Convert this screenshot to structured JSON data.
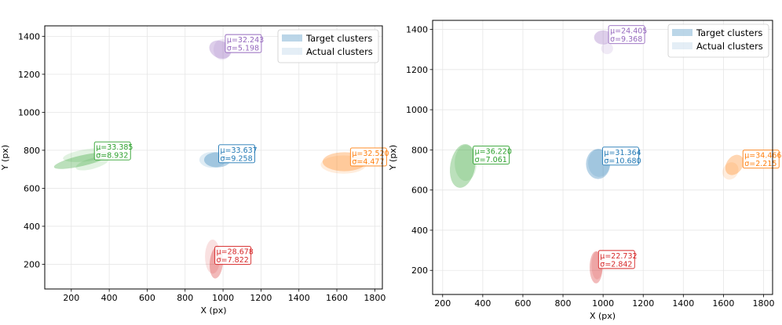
{
  "chart_data": [
    {
      "type": "scatter",
      "xlabel": "X (px)",
      "ylabel": "Y (px)",
      "xlim": [
        60,
        1840
      ],
      "ylim": [
        70,
        1455
      ],
      "xticks": [
        200,
        400,
        600,
        800,
        1000,
        1200,
        1400,
        1600,
        1800
      ],
      "yticks": [
        200,
        400,
        600,
        800,
        1000,
        1200,
        1400
      ],
      "grid": true,
      "legend": {
        "placement": "top-right",
        "entries": [
          "Target clusters",
          "Actual clusters"
        ]
      },
      "clusters": [
        {
          "color": "#9467bd",
          "x": 985,
          "y": 1330,
          "rx": 60,
          "ry": 45,
          "angle": 25,
          "actual": [
            {
              "dx": 10,
              "dy": 0,
              "rx": 45,
              "ry": 55,
              "angle": 0
            }
          ],
          "label": {
            "mu": "μ=32.243",
            "sigma": "σ=5.198",
            "x": 1020,
            "y": 1405
          }
        },
        {
          "color": "#1f77b4",
          "x": 970,
          "y": 750,
          "rx": 70,
          "ry": 40,
          "angle": 0,
          "actual": [
            {
              "dx": -25,
              "dy": 0,
              "rx": 70,
              "ry": 42,
              "angle": 0
            }
          ],
          "label": {
            "mu": "μ=33.637",
            "sigma": "σ=9.258",
            "x": 985,
            "y": 825
          }
        },
        {
          "color": "#2ca02c",
          "x": 255,
          "y": 745,
          "rx": 150,
          "ry": 28,
          "angle": -13,
          "actual": [
            {
              "dx": 35,
              "dy": 30,
              "rx": 135,
              "ry": 32,
              "angle": -8
            },
            {
              "dx": 55,
              "dy": -15,
              "rx": 90,
              "ry": 28,
              "angle": -15
            }
          ],
          "label": {
            "mu": "μ=33.385",
            "sigma": "σ=8.932",
            "x": 330,
            "y": 840
          }
        },
        {
          "color": "#ff7f0e",
          "x": 1640,
          "y": 740,
          "rx": 115,
          "ry": 50,
          "angle": 0,
          "actual": [
            {
              "dx": -5,
              "dy": -15,
              "rx": 120,
              "ry": 48,
              "angle": 0
            }
          ],
          "label": {
            "mu": "μ=32.520",
            "sigma": "σ=4.477",
            "x": 1680,
            "y": 808
          }
        },
        {
          "color": "#d62728",
          "x": 965,
          "y": 210,
          "rx": 35,
          "ry": 85,
          "angle": 5,
          "actual": [
            {
              "dx": -20,
              "dy": 30,
              "rx": 40,
              "ry": 90,
              "angle": 0
            }
          ],
          "label": {
            "mu": "μ=28.678",
            "sigma": "σ=7.822",
            "x": 965,
            "y": 290
          }
        }
      ]
    },
    {
      "type": "scatter",
      "xlabel": "X (px)",
      "ylabel": "Y (px)",
      "xlim": [
        150,
        1845
      ],
      "ylim": [
        80,
        1445
      ],
      "xticks": [
        200,
        400,
        600,
        800,
        1000,
        1200,
        1400,
        1600,
        1800
      ],
      "yticks": [
        200,
        400,
        600,
        800,
        1000,
        1200,
        1400
      ],
      "grid": true,
      "legend": {
        "placement": "top-right",
        "entries": [
          "Target clusters",
          "Actual clusters"
        ]
      },
      "clusters": [
        {
          "color": "#9467bd",
          "x": 1000,
          "y": 1360,
          "rx": 45,
          "ry": 35,
          "angle": 0,
          "actual": [
            {
              "dx": 20,
              "dy": -55,
              "rx": 30,
              "ry": 28,
              "angle": 0
            }
          ],
          "label": {
            "mu": "μ=24.405",
            "sigma": "σ=9.368",
            "x": 1035,
            "y": 1415
          }
        },
        {
          "color": "#1f77b4",
          "x": 975,
          "y": 730,
          "rx": 60,
          "ry": 75,
          "angle": 0,
          "actual": [
            {
              "dx": 5,
              "dy": 5,
              "rx": 55,
              "ry": 70,
              "angle": 0
            }
          ],
          "label": {
            "mu": "μ=31.364",
            "sigma": "σ=10.680",
            "x": 1005,
            "y": 810
          }
        },
        {
          "color": "#2ca02c",
          "x": 300,
          "y": 720,
          "rx": 62,
          "ry": 110,
          "angle": 10,
          "actual": [
            {
              "dx": 15,
              "dy": 15,
              "rx": 55,
              "ry": 90,
              "angle": 0
            }
          ],
          "label": {
            "mu": "μ=36.220",
            "sigma": "σ=7.061",
            "x": 360,
            "y": 815
          }
        },
        {
          "color": "#ff7f0e",
          "x": 1655,
          "y": 725,
          "rx": 40,
          "ry": 55,
          "angle": 35,
          "actual": [
            {
              "dx": -20,
              "dy": -30,
              "rx": 38,
              "ry": 45,
              "angle": 30
            }
          ],
          "label": {
            "mu": "μ=34.466",
            "sigma": "σ=2.215",
            "x": 1705,
            "y": 795
          }
        },
        {
          "color": "#d62728",
          "x": 965,
          "y": 215,
          "rx": 32,
          "ry": 80,
          "angle": 0,
          "actual": [
            {
              "dx": 5,
              "dy": 10,
              "rx": 28,
              "ry": 70,
              "angle": 0
            }
          ],
          "label": {
            "mu": "μ=22.732",
            "sigma": "σ=2.842",
            "x": 985,
            "y": 295
          }
        }
      ]
    }
  ]
}
